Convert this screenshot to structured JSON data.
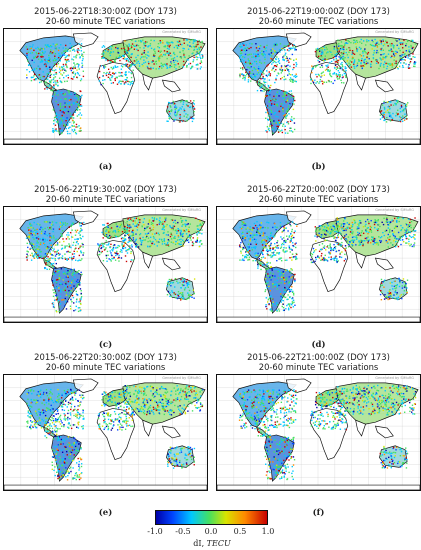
{
  "panels": [
    {
      "title": "2015-06-22T18:30:00Z (DOY 173)",
      "subtitle": "20-60 minute TEC variations",
      "label": "(a)",
      "intensity": 0.15
    },
    {
      "title": "2015-06-22T19:00:00Z (DOY 173)",
      "subtitle": "20-60 minute TEC variations",
      "label": "(b)",
      "intensity": 0.35
    },
    {
      "title": "2015-06-22T19:30:00Z (DOY 173)",
      "subtitle": "20-60 minute TEC variations",
      "label": "(c)",
      "intensity": 0.55
    },
    {
      "title": "2015-06-22T20:00:00Z (DOY 173)",
      "subtitle": "20-60 minute TEC variations",
      "label": "(d)",
      "intensity": 0.75
    },
    {
      "title": "2015-06-22T20:30:00Z (DOY 173)",
      "subtitle": "20-60 minute TEC variations",
      "label": "(e)",
      "intensity": 0.7
    },
    {
      "title": "2015-06-22T21:00:00Z (DOY 173)",
      "subtitle": "20-60 minute TEC variations",
      "label": "(f)",
      "intensity": 0.6
    }
  ],
  "credit": "Generated by SIMuRG",
  "colorbar": {
    "ticks": [
      "-1.0",
      "-0.5",
      "0.0",
      "0.5",
      "1.0"
    ],
    "label_prefix": "dI, ",
    "label_unit": "TECU",
    "range": [
      -1.0,
      1.0
    ],
    "colors": [
      "#0000a8",
      "#0044ff",
      "#00c8ff",
      "#45e060",
      "#d9e400",
      "#ff8a00",
      "#c80000"
    ]
  }
}
